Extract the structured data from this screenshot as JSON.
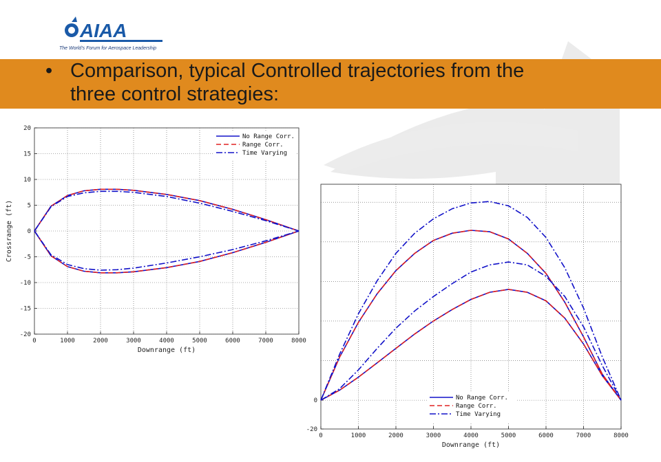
{
  "header": {
    "logo_text": "AIAA",
    "logo_tagline": "The World's Forum for Aerospace Leadership",
    "bullet_line1": "Comparison, typical Controlled trajectories from the",
    "bullet_line2": "three control strategies:",
    "banner_color": "#e08a1e"
  },
  "chart_data": [
    {
      "type": "line",
      "xlabel": "Downrange (ft)",
      "ylabel": "Crossrange (ft)",
      "xlim": [
        0,
        8000
      ],
      "ylim": [
        -20,
        20
      ],
      "xticks": [
        0,
        1000,
        2000,
        3000,
        4000,
        5000,
        6000,
        7000,
        8000
      ],
      "yticks": [
        -20,
        -15,
        -10,
        -5,
        0,
        5,
        10,
        15,
        20
      ],
      "grid": true,
      "legend_position": "top-right",
      "series": [
        {
          "name": "No Range Corr.",
          "color": "#1010c8",
          "dash": "solid",
          "x": [
            0,
            500,
            1000,
            1500,
            2000,
            2500,
            3000,
            4000,
            5000,
            6000,
            7000,
            8000
          ],
          "y_upper": [
            0,
            4.8,
            6.9,
            7.8,
            8.1,
            8.1,
            7.9,
            7.1,
            5.9,
            4.2,
            2.2,
            0
          ],
          "y_lower": [
            0,
            -4.8,
            -6.9,
            -7.8,
            -8.1,
            -8.1,
            -7.9,
            -7.1,
            -5.9,
            -4.2,
            -2.2,
            0
          ]
        },
        {
          "name": "Range Corr.",
          "color": "#e02020",
          "dash": "dashed",
          "x": [
            0,
            500,
            1000,
            1500,
            2000,
            2500,
            3000,
            4000,
            5000,
            6000,
            7000,
            8000
          ],
          "y_upper": [
            0,
            4.8,
            6.9,
            7.8,
            8.1,
            8.1,
            7.9,
            7.1,
            5.9,
            4.2,
            2.2,
            0
          ],
          "y_lower": [
            0,
            -4.8,
            -6.9,
            -7.8,
            -8.1,
            -8.1,
            -7.9,
            -7.1,
            -5.9,
            -4.2,
            -2.2,
            0
          ]
        },
        {
          "name": "Time Varying",
          "color": "#1010c8",
          "dash": "dashdot",
          "x": [
            0,
            500,
            1000,
            1500,
            2000,
            2500,
            3000,
            4000,
            5000,
            6000,
            7000,
            8000
          ],
          "y_upper": [
            0,
            4.7,
            6.7,
            7.4,
            7.7,
            7.7,
            7.5,
            6.7,
            5.4,
            3.8,
            2.0,
            0
          ],
          "y_lower": [
            0,
            -4.6,
            -6.5,
            -7.3,
            -7.6,
            -7.5,
            -7.2,
            -6.2,
            -5.0,
            -3.6,
            -1.9,
            0
          ]
        }
      ]
    },
    {
      "type": "line",
      "xlabel": "Downrange (ft)",
      "ylabel": "",
      "xlim": [
        0,
        8000
      ],
      "ylim": [
        -20,
        150
      ],
      "xticks": [
        0,
        1000,
        2000,
        3000,
        4000,
        5000,
        6000,
        7000,
        8000
      ],
      "yticks": [
        -20,
        0
      ],
      "grid": true,
      "legend_position": "bottom-center",
      "series": [
        {
          "name": "No Range Corr.",
          "color": "#1010c8",
          "dash": "solid",
          "x": [
            0,
            500,
            1000,
            1500,
            2000,
            2500,
            3000,
            3500,
            4000,
            4500,
            5000,
            5500,
            6000,
            6500,
            7000,
            7500,
            8000
          ],
          "y_upper": [
            0,
            30,
            54,
            74,
            90,
            102,
            111,
            116,
            118,
            117,
            112,
            102,
            88,
            68,
            44,
            18,
            0
          ],
          "y_lower": [
            0,
            7,
            16,
            26,
            36,
            46,
            55,
            63,
            70,
            75,
            77,
            75,
            69,
            57,
            39,
            17,
            0
          ]
        },
        {
          "name": "Range Corr.",
          "color": "#e02020",
          "dash": "dashed",
          "x": [
            0,
            500,
            1000,
            1500,
            2000,
            2500,
            3000,
            3500,
            4000,
            4500,
            5000,
            5500,
            6000,
            6500,
            7000,
            7500,
            8000
          ],
          "y_upper": [
            0,
            30,
            54,
            74,
            90,
            102,
            111,
            116,
            118,
            117,
            112,
            102,
            88,
            68,
            44,
            18,
            0
          ],
          "y_lower": [
            0,
            7,
            16,
            26,
            36,
            46,
            55,
            63,
            70,
            75,
            77,
            75,
            69,
            57,
            39,
            17,
            0
          ]
        },
        {
          "name": "Time Varying",
          "color": "#1010c8",
          "dash": "dashdot",
          "x": [
            0,
            500,
            1000,
            1500,
            2000,
            2500,
            3000,
            3500,
            4000,
            4500,
            5000,
            5500,
            6000,
            6500,
            7000,
            7500,
            8000
          ],
          "y_upper": [
            0,
            32,
            60,
            83,
            102,
            116,
            126,
            133,
            137,
            138,
            135,
            127,
            113,
            92,
            64,
            30,
            0
          ],
          "y_lower": [
            0,
            8,
            21,
            36,
            50,
            62,
            72,
            81,
            89,
            94,
            96,
            94,
            86,
            72,
            51,
            24,
            0
          ]
        }
      ]
    }
  ]
}
